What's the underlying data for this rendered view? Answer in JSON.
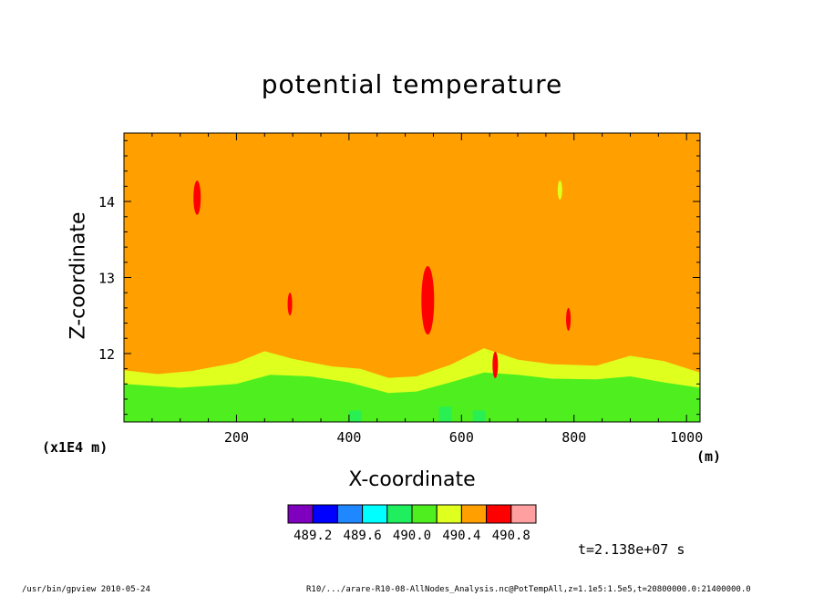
{
  "chart_data": {
    "type": "heatmap",
    "title": "potential temperature",
    "xlabel": "X-coordinate",
    "ylabel": "Z-coordinate",
    "x_unit": "(m)",
    "y_unit": "(x1E4 m)",
    "xlim": [
      0,
      1024
    ],
    "ylim": [
      11.1,
      14.9
    ],
    "x_ticks": [
      200,
      400,
      600,
      800,
      1000
    ],
    "y_ticks": [
      12,
      13,
      14
    ],
    "field": {
      "background_value": 490.5,
      "band_top_bright_green": [
        {
          "x": 0,
          "z": 11.6
        },
        {
          "x": 100,
          "z": 11.55
        },
        {
          "x": 200,
          "z": 11.6
        },
        {
          "x": 260,
          "z": 11.72
        },
        {
          "x": 330,
          "z": 11.7
        },
        {
          "x": 400,
          "z": 11.62
        },
        {
          "x": 470,
          "z": 11.48
        },
        {
          "x": 520,
          "z": 11.5
        },
        {
          "x": 580,
          "z": 11.62
        },
        {
          "x": 640,
          "z": 11.75
        },
        {
          "x": 700,
          "z": 11.72
        },
        {
          "x": 760,
          "z": 11.67
        },
        {
          "x": 840,
          "z": 11.66
        },
        {
          "x": 900,
          "z": 11.7
        },
        {
          "x": 960,
          "z": 11.62
        },
        {
          "x": 1024,
          "z": 11.55
        }
      ],
      "band_top_yellow": [
        {
          "x": 0,
          "z": 11.78
        },
        {
          "x": 60,
          "z": 11.73
        },
        {
          "x": 120,
          "z": 11.77
        },
        {
          "x": 200,
          "z": 11.88
        },
        {
          "x": 250,
          "z": 12.03
        },
        {
          "x": 300,
          "z": 11.93
        },
        {
          "x": 370,
          "z": 11.83
        },
        {
          "x": 420,
          "z": 11.8
        },
        {
          "x": 470,
          "z": 11.68
        },
        {
          "x": 520,
          "z": 11.7
        },
        {
          "x": 580,
          "z": 11.85
        },
        {
          "x": 640,
          "z": 12.07
        },
        {
          "x": 700,
          "z": 11.92
        },
        {
          "x": 760,
          "z": 11.86
        },
        {
          "x": 840,
          "z": 11.84
        },
        {
          "x": 900,
          "z": 11.97
        },
        {
          "x": 960,
          "z": 11.9
        },
        {
          "x": 1024,
          "z": 11.75
        }
      ],
      "red_patches": [
        {
          "x": 130,
          "z": 14.05,
          "w": 8,
          "h": 0.45
        },
        {
          "x": 540,
          "z": 12.7,
          "w": 14,
          "h": 0.9
        },
        {
          "x": 660,
          "z": 11.85,
          "w": 6,
          "h": 0.35
        },
        {
          "x": 295,
          "z": 12.65,
          "w": 5,
          "h": 0.3
        },
        {
          "x": 790,
          "z": 12.45,
          "w": 5,
          "h": 0.3
        }
      ],
      "yellow_patches": [
        {
          "x": 775,
          "z": 14.15,
          "w": 5,
          "h": 0.25
        }
      ]
    },
    "legend": {
      "colors": [
        "#7f00bf",
        "#0000ff",
        "#1f87ff",
        "#00ffff",
        "#1fef5f",
        "#4fef1f",
        "#dfff1f",
        "#ff9f00",
        "#ff0000",
        "#ff9f9f"
      ],
      "tick_labels": [
        "489.2",
        "489.6",
        "490.0",
        "490.4",
        "490.8"
      ]
    }
  },
  "time_label": "t=2.138e+07 s",
  "footer_left": "/usr/bin/gpview   2010-05-24",
  "footer_right": "R10/.../arare-R10-08-AllNodes_Analysis.nc@PotTempAll,z=1.1e5:1.5e5,t=20800000.0:21400000.0"
}
